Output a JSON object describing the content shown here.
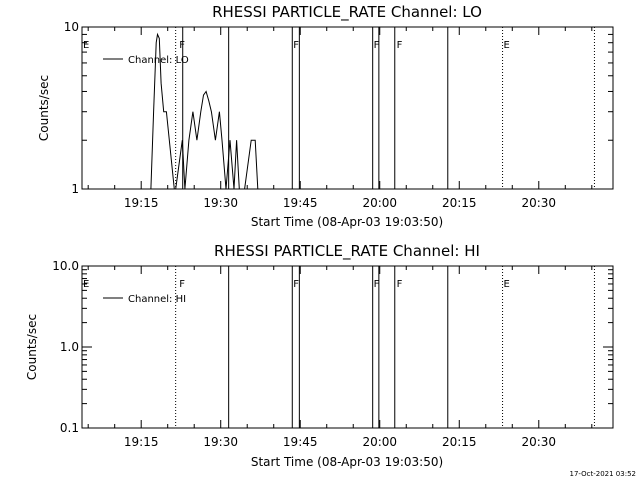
{
  "chart_data": [
    {
      "type": "line",
      "title": "RHESSI PARTICLE_RATE Channel: LO",
      "xlabel": "Start Time (08-Apr-03 19:03:50)",
      "ylabel": "Counts/sec",
      "yscale": "log",
      "ylim": [
        1,
        10
      ],
      "xlim": [
        "19:03:50",
        "20:44:00"
      ],
      "xticks": [
        "19:15",
        "19:30",
        "19:45",
        "20:00",
        "20:15",
        "20:30"
      ],
      "yticks": [
        "1",
        "10"
      ],
      "grid": false,
      "legend": {
        "position": "top-left",
        "entries": [
          "Channel: LO"
        ]
      },
      "series": [
        {
          "name": "Channel: LO",
          "x": [
            "19:16:50",
            "19:17:20",
            "19:17:50",
            "19:18:05",
            "19:18:25",
            "19:18:45",
            "19:19:15",
            "19:19:45",
            "19:21:15",
            "19:21:30",
            "19:22:45",
            "19:23:15",
            "19:24:00",
            "19:24:45",
            "19:25:30",
            "19:26:15",
            "19:26:45",
            "19:27:15",
            "19:27:45",
            "19:28:15",
            "19:29:00",
            "19:29:45",
            "19:30:15",
            "19:31:00",
            "19:31:45",
            "19:32:30",
            "19:33:00",
            "19:33:30",
            "19:34:30",
            "19:35:45",
            "19:36:30",
            "19:37:00"
          ],
          "y": [
            1.0,
            3.0,
            8.0,
            9.0,
            8.5,
            4.5,
            3.0,
            3.0,
            1.0,
            1.0,
            2.0,
            1.0,
            2.0,
            3.0,
            2.0,
            3.0,
            3.8,
            4.0,
            3.5,
            3.0,
            2.0,
            3.0,
            2.0,
            1.0,
            2.0,
            1.0,
            2.0,
            1.0,
            1.0,
            2.0,
            2.0,
            1.0
          ]
        }
      ],
      "annotations": {
        "solid_lines": [
          "19:22:50",
          "19:31:30",
          "19:43:30",
          "19:44:50",
          "19:58:40",
          "19:59:50",
          "20:02:50",
          "20:12:50"
        ],
        "dotted_lines": [
          "19:21:30",
          "20:23:10",
          "20:40:30"
        ],
        "flags": [
          {
            "text": "E",
            "x": "19:03:50"
          },
          {
            "text": "F",
            "x": "19:22:00"
          },
          {
            "text": "F",
            "x": "19:43:30"
          },
          {
            "text": "F",
            "x": "19:58:40"
          },
          {
            "text": "F",
            "x": "20:03:00"
          },
          {
            "text": "E",
            "x": "20:23:10"
          }
        ]
      }
    },
    {
      "type": "line",
      "title": "RHESSI PARTICLE_RATE Channel: HI",
      "xlabel": "Start Time (08-Apr-03 19:03:50)",
      "ylabel": "Counts/sec",
      "yscale": "log",
      "ylim": [
        0.1,
        10
      ],
      "xlim": [
        "19:03:50",
        "20:44:00"
      ],
      "xticks": [
        "19:15",
        "19:30",
        "19:45",
        "20:00",
        "20:15",
        "20:30"
      ],
      "yticks": [
        "0.1",
        "1.0",
        "10.0"
      ],
      "grid": false,
      "legend": {
        "position": "top-left",
        "entries": [
          "Channel: HI"
        ]
      },
      "series": [
        {
          "name": "Channel: HI",
          "x": [],
          "y": []
        }
      ],
      "annotations": {
        "solid_lines": [
          "19:31:30",
          "19:43:30",
          "19:44:50",
          "19:58:40",
          "19:59:50",
          "20:02:50",
          "20:12:50"
        ],
        "dotted_lines": [
          "19:21:30",
          "20:23:10",
          "20:40:30"
        ],
        "flags": [
          {
            "text": "E",
            "x": "19:03:50"
          },
          {
            "text": "F",
            "x": "19:22:00"
          },
          {
            "text": "F",
            "x": "19:43:30"
          },
          {
            "text": "F",
            "x": "19:58:40"
          },
          {
            "text": "F",
            "x": "20:03:00"
          },
          {
            "text": "E",
            "x": "20:23:10"
          }
        ]
      }
    }
  ],
  "footer": {
    "timestamp": "17-Oct-2021 03:52"
  }
}
